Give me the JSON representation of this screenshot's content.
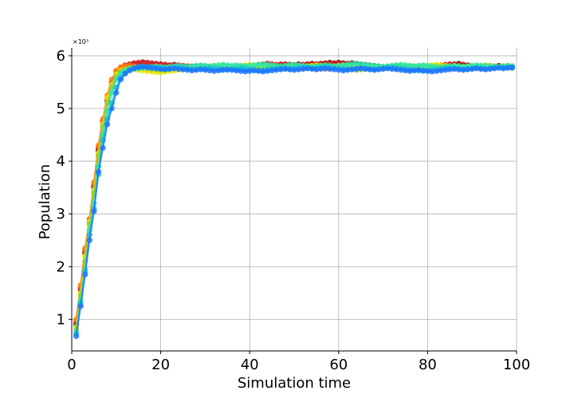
{
  "chart_data": {
    "type": "line",
    "title": "",
    "xlabel": "Simulation time",
    "ylabel": "Population",
    "y_multiplier_label": "×10³",
    "xlim": [
      0,
      100
    ],
    "ylim": [
      0.4,
      6.15
    ],
    "y_units_scale": 1000,
    "xticks": [
      0,
      20,
      40,
      60,
      80,
      100
    ],
    "yticks": [
      1,
      2,
      3,
      4,
      5,
      6
    ],
    "grid": true,
    "legend": "none",
    "markers": true,
    "series": [
      {
        "color": "#7f0000",
        "values": [
          0.9,
          1.55,
          2.25,
          2.85,
          3.5,
          4.2,
          4.7,
          5.15,
          5.45,
          5.65,
          5.75,
          5.8,
          5.82,
          5.85,
          5.85,
          5.87,
          5.86,
          5.85,
          5.84,
          5.84,
          5.83,
          5.82,
          5.83,
          5.82,
          5.81,
          5.8,
          5.79,
          5.8,
          5.79,
          5.8,
          5.79,
          5.78,
          5.79,
          5.8,
          5.79,
          5.78,
          5.79,
          5.78,
          5.79,
          5.78,
          5.8,
          5.82,
          5.83,
          5.85,
          5.83,
          5.82,
          5.83,
          5.84,
          5.83,
          5.82,
          5.84,
          5.83,
          5.84,
          5.85,
          5.84,
          5.85,
          5.86,
          5.87,
          5.86,
          5.87,
          5.86,
          5.85,
          5.86,
          5.85,
          5.84,
          5.83,
          5.82,
          5.81,
          5.8,
          5.79,
          5.78,
          5.79,
          5.78,
          5.79,
          5.8,
          5.79,
          5.78,
          5.77,
          5.76,
          5.77,
          5.78,
          5.79,
          5.8,
          5.82,
          5.83,
          5.84,
          5.85,
          5.83,
          5.82,
          5.81,
          5.8,
          5.79,
          5.8,
          5.79,
          5.8,
          5.81,
          5.8,
          5.79,
          5.8
        ]
      },
      {
        "color": "#d62728",
        "values": [
          0.95,
          1.6,
          2.3,
          2.9,
          3.55,
          4.25,
          4.75,
          5.2,
          5.5,
          5.7,
          5.78,
          5.82,
          5.84,
          5.86,
          5.87,
          5.88,
          5.87,
          5.86,
          5.85,
          5.84,
          5.83,
          5.82,
          5.81,
          5.82,
          5.81,
          5.8,
          5.8,
          5.79,
          5.8,
          5.79,
          5.78,
          5.79,
          5.78,
          5.79,
          5.8,
          5.79,
          5.8,
          5.79,
          5.8,
          5.81,
          5.82,
          5.83,
          5.84,
          5.85,
          5.84,
          5.83,
          5.84,
          5.83,
          5.82,
          5.83,
          5.82,
          5.83,
          5.84,
          5.83,
          5.84,
          5.85,
          5.84,
          5.85,
          5.84,
          5.85,
          5.84,
          5.83,
          5.82,
          5.81,
          5.8,
          5.81,
          5.8,
          5.79,
          5.78,
          5.79,
          5.78,
          5.79,
          5.8,
          5.79,
          5.8,
          5.79,
          5.8,
          5.79,
          5.78,
          5.79,
          5.8,
          5.81,
          5.82,
          5.83,
          5.84,
          5.83,
          5.82,
          5.81,
          5.8,
          5.79,
          5.78,
          5.79,
          5.8,
          5.79,
          5.8,
          5.79,
          5.8,
          5.79,
          5.8
        ]
      },
      {
        "color": "#ff7f0e",
        "values": [
          1.0,
          1.65,
          2.35,
          2.9,
          3.6,
          4.3,
          4.8,
          5.25,
          5.55,
          5.72,
          5.78,
          5.8,
          5.81,
          5.8,
          5.79,
          5.78,
          5.77,
          5.76,
          5.75,
          5.74,
          5.75,
          5.76,
          5.77,
          5.78,
          5.77,
          5.78,
          5.77,
          5.76,
          5.77,
          5.78,
          5.77,
          5.76,
          5.77,
          5.76,
          5.77,
          5.78,
          5.77,
          5.78,
          5.77,
          5.76,
          5.75,
          5.76,
          5.77,
          5.78,
          5.77,
          5.76,
          5.77,
          5.78,
          5.79,
          5.78,
          5.77,
          5.76,
          5.77,
          5.78,
          5.77,
          5.76,
          5.75,
          5.76,
          5.77,
          5.78,
          5.77,
          5.78,
          5.79,
          5.78,
          5.77,
          5.76,
          5.75,
          5.76,
          5.77,
          5.76,
          5.77,
          5.78,
          5.77,
          5.76,
          5.75,
          5.76,
          5.77,
          5.78,
          5.77,
          5.76,
          5.77,
          5.78,
          5.79,
          5.8,
          5.79,
          5.78,
          5.77,
          5.78,
          5.77,
          5.76,
          5.77,
          5.78,
          5.77,
          5.78,
          5.77,
          5.78,
          5.79,
          5.78,
          5.77
        ]
      },
      {
        "color": "#e6e600",
        "values": [
          0.85,
          1.5,
          2.2,
          2.85,
          3.45,
          4.15,
          4.7,
          5.2,
          5.45,
          5.65,
          5.72,
          5.74,
          5.75,
          5.74,
          5.73,
          5.72,
          5.71,
          5.7,
          5.69,
          5.68,
          5.7,
          5.71,
          5.72,
          5.73,
          5.74,
          5.75,
          5.76,
          5.77,
          5.78,
          5.79,
          5.8,
          5.81,
          5.82,
          5.81,
          5.8,
          5.79,
          5.8,
          5.81,
          5.82,
          5.83,
          5.82,
          5.81,
          5.8,
          5.79,
          5.8,
          5.79,
          5.78,
          5.77,
          5.76,
          5.77,
          5.78,
          5.79,
          5.8,
          5.81,
          5.82,
          5.81,
          5.8,
          5.79,
          5.8,
          5.81,
          5.82,
          5.81,
          5.8,
          5.79,
          5.78,
          5.79,
          5.8,
          5.79,
          5.78,
          5.77,
          5.78,
          5.79,
          5.8,
          5.81,
          5.82,
          5.81,
          5.8,
          5.79,
          5.8,
          5.81,
          5.82,
          5.83,
          5.82,
          5.81,
          5.8,
          5.79,
          5.78,
          5.79,
          5.8,
          5.81,
          5.8,
          5.79,
          5.8,
          5.81,
          5.8,
          5.79,
          5.8,
          5.81,
          5.8
        ]
      },
      {
        "color": "#9acd32",
        "values": [
          0.8,
          1.45,
          2.1,
          2.8,
          3.4,
          4.1,
          4.65,
          5.1,
          5.4,
          5.6,
          5.7,
          5.74,
          5.76,
          5.77,
          5.78,
          5.77,
          5.76,
          5.75,
          5.74,
          5.73,
          5.74,
          5.75,
          5.76,
          5.75,
          5.74,
          5.75,
          5.76,
          5.77,
          5.76,
          5.75,
          5.76,
          5.77,
          5.78,
          5.77,
          5.76,
          5.77,
          5.78,
          5.79,
          5.78,
          5.77,
          5.76,
          5.75,
          5.74,
          5.75,
          5.76,
          5.77,
          5.76,
          5.75,
          5.74,
          5.75,
          5.76,
          5.77,
          5.78,
          5.77,
          5.76,
          5.77,
          5.78,
          5.79,
          5.78,
          5.77,
          5.76,
          5.75,
          5.74,
          5.73,
          5.74,
          5.75,
          5.76,
          5.77,
          5.78,
          5.79,
          5.8,
          5.81,
          5.82,
          5.81,
          5.8,
          5.79,
          5.8,
          5.81,
          5.8,
          5.79,
          5.78,
          5.77,
          5.78,
          5.79,
          5.8,
          5.81,
          5.8,
          5.79,
          5.78,
          5.79,
          5.8,
          5.81,
          5.82,
          5.81,
          5.8,
          5.79,
          5.8,
          5.81,
          5.8
        ]
      },
      {
        "color": "#2ee6a8",
        "values": [
          0.75,
          1.35,
          1.95,
          2.7,
          3.2,
          3.9,
          4.5,
          4.95,
          5.3,
          5.55,
          5.66,
          5.72,
          5.74,
          5.75,
          5.76,
          5.77,
          5.78,
          5.79,
          5.8,
          5.79,
          5.78,
          5.79,
          5.8,
          5.81,
          5.8,
          5.79,
          5.8,
          5.81,
          5.82,
          5.81,
          5.8,
          5.81,
          5.82,
          5.83,
          5.82,
          5.81,
          5.82,
          5.81,
          5.8,
          5.81,
          5.82,
          5.83,
          5.84,
          5.83,
          5.82,
          5.81,
          5.8,
          5.81,
          5.82,
          5.83,
          5.82,
          5.81,
          5.8,
          5.79,
          5.8,
          5.81,
          5.82,
          5.81,
          5.8,
          5.81,
          5.82,
          5.83,
          5.84,
          5.85,
          5.84,
          5.83,
          5.82,
          5.81,
          5.8,
          5.79,
          5.8,
          5.81,
          5.82,
          5.83,
          5.82,
          5.81,
          5.8,
          5.81,
          5.82,
          5.81,
          5.8,
          5.79,
          5.78,
          5.79,
          5.8,
          5.81,
          5.8,
          5.79,
          5.8,
          5.81,
          5.82,
          5.81,
          5.8,
          5.79,
          5.8,
          5.79,
          5.8,
          5.81,
          5.8
        ]
      },
      {
        "color": "#17becf",
        "values": [
          0.72,
          1.3,
          1.9,
          2.6,
          3.1,
          3.75,
          4.4,
          4.8,
          5.1,
          5.4,
          5.58,
          5.68,
          5.74,
          5.77,
          5.79,
          5.8,
          5.79,
          5.78,
          5.77,
          5.76,
          5.75,
          5.76,
          5.77,
          5.78,
          5.77,
          5.76,
          5.75,
          5.74,
          5.75,
          5.76,
          5.77,
          5.76,
          5.75,
          5.74,
          5.73,
          5.74,
          5.75,
          5.76,
          5.75,
          5.74,
          5.73,
          5.72,
          5.73,
          5.74,
          5.75,
          5.76,
          5.77,
          5.76,
          5.75,
          5.76,
          5.77,
          5.78,
          5.77,
          5.76,
          5.77,
          5.78,
          5.79,
          5.78,
          5.77,
          5.76,
          5.75,
          5.74,
          5.75,
          5.76,
          5.77,
          5.76,
          5.75,
          5.74,
          5.75,
          5.76,
          5.77,
          5.78,
          5.77,
          5.76,
          5.75,
          5.74,
          5.73,
          5.72,
          5.71,
          5.72,
          5.73,
          5.74,
          5.75,
          5.76,
          5.77,
          5.76,
          5.75,
          5.74,
          5.75,
          5.76,
          5.77,
          5.76,
          5.75,
          5.76,
          5.77,
          5.78,
          5.77,
          5.78,
          5.77
        ]
      },
      {
        "color": "#1f77ff",
        "values": [
          0.68,
          1.25,
          1.85,
          2.5,
          3.05,
          3.8,
          4.25,
          4.7,
          5.0,
          5.3,
          5.55,
          5.66,
          5.72,
          5.76,
          5.78,
          5.79,
          5.78,
          5.77,
          5.76,
          5.75,
          5.74,
          5.75,
          5.76,
          5.75,
          5.74,
          5.73,
          5.72,
          5.73,
          5.74,
          5.73,
          5.72,
          5.71,
          5.72,
          5.73,
          5.74,
          5.73,
          5.72,
          5.71,
          5.7,
          5.71,
          5.72,
          5.71,
          5.7,
          5.71,
          5.72,
          5.73,
          5.74,
          5.75,
          5.74,
          5.73,
          5.74,
          5.75,
          5.76,
          5.75,
          5.74,
          5.75,
          5.76,
          5.75,
          5.74,
          5.73,
          5.72,
          5.73,
          5.74,
          5.75,
          5.76,
          5.75,
          5.74,
          5.73,
          5.74,
          5.75,
          5.76,
          5.75,
          5.74,
          5.73,
          5.72,
          5.71,
          5.72,
          5.73,
          5.72,
          5.71,
          5.7,
          5.71,
          5.72,
          5.73,
          5.74,
          5.75,
          5.74,
          5.73,
          5.74,
          5.75,
          5.76,
          5.75,
          5.74,
          5.75,
          5.76,
          5.77,
          5.76,
          5.77,
          5.78
        ]
      }
    ]
  }
}
